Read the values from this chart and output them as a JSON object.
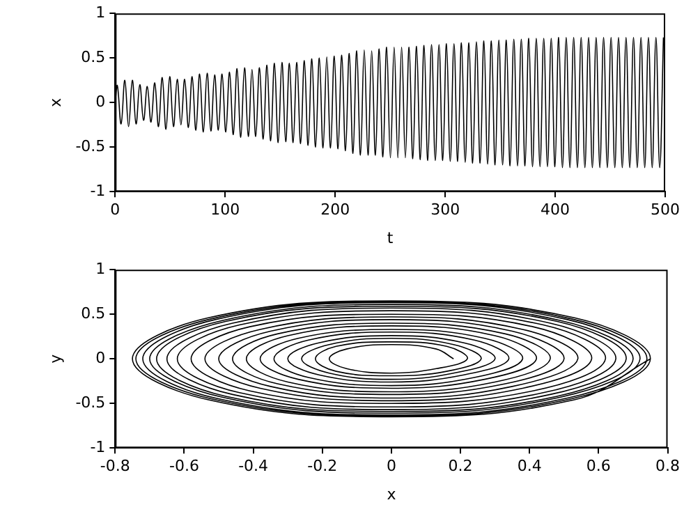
{
  "chart_data": [
    {
      "type": "line",
      "xlabel": "t",
      "ylabel": "x",
      "xlim": [
        0,
        500
      ],
      "xticks": [
        0,
        100,
        200,
        300,
        400,
        500
      ],
      "ylim": [
        -1,
        1
      ],
      "yticks": [
        -1,
        -0.5,
        0,
        0.5,
        1
      ],
      "grid": false,
      "legend": false,
      "series": [
        {
          "color": "#000000",
          "x": [
            0,
            2,
            5.4,
            8.8,
            12.2,
            15.6,
            19,
            22.4,
            25.8,
            29.2,
            32.6,
            36,
            39.4,
            42.8,
            46.2,
            49.6,
            53,
            56.4,
            59.8,
            63.2,
            66.6,
            70,
            73.4,
            76.8,
            80.2,
            83.6,
            87,
            90.4,
            93.8,
            97.2,
            100.6,
            104,
            107.4,
            110.8,
            114.2,
            117.6,
            121,
            124.4,
            127.8,
            131.2,
            134.6,
            138,
            141.4,
            144.8,
            148.2,
            151.6,
            155,
            158.4,
            161.8,
            165.2,
            168.6,
            172,
            175.4,
            178.8,
            182.2,
            185.6,
            189,
            192.4,
            195.8,
            199.2,
            202.6,
            206,
            209.4,
            212.8,
            216.2,
            219.6,
            223,
            226.4,
            229.8,
            233.2,
            236.6,
            240,
            243.4,
            246.8,
            250.2,
            253.6,
            257,
            260.4,
            263.8,
            267.2,
            270.6,
            274,
            277.4,
            280.8,
            284.2,
            287.6,
            291,
            294.4,
            297.8,
            301.2,
            304.6,
            308,
            311.4,
            314.8,
            318.2,
            321.6,
            325,
            328.4,
            331.8,
            335.2,
            338.6,
            342,
            345.4,
            348.8,
            352.2,
            355.6,
            359,
            362.4,
            365.8,
            369.2,
            372.6,
            376,
            379.4,
            382.8,
            386.2,
            389.6,
            393,
            396.4,
            399.8,
            403.2,
            406.6,
            410,
            413.4,
            416.8,
            420.2,
            423.6,
            427,
            430.4,
            433.8,
            437.2,
            440.6,
            444,
            447.4,
            450.8,
            454.2,
            457.6,
            461,
            464.4,
            467.8,
            471.2,
            474.6,
            478,
            481.4,
            484.8,
            488.2,
            491.6,
            495,
            498.4
          ],
          "values": [
            0,
            0.19,
            -0.24,
            0.25,
            -0.27,
            0.25,
            -0.24,
            0.2,
            -0.2,
            0.18,
            -0.22,
            0.22,
            -0.27,
            0.28,
            -0.3,
            0.29,
            -0.27,
            0.26,
            -0.25,
            0.26,
            -0.28,
            0.29,
            -0.31,
            0.32,
            -0.33,
            0.33,
            -0.32,
            0.31,
            -0.31,
            0.32,
            -0.33,
            0.34,
            -0.36,
            0.38,
            -0.39,
            0.39,
            -0.38,
            0.37,
            -0.38,
            0.39,
            -0.41,
            0.42,
            -0.43,
            0.44,
            -0.45,
            0.45,
            -0.44,
            0.44,
            -0.45,
            0.45,
            -0.46,
            0.47,
            -0.48,
            0.49,
            -0.5,
            0.5,
            -0.51,
            0.51,
            -0.51,
            0.52,
            -0.52,
            0.53,
            -0.54,
            0.55,
            -0.57,
            0.58,
            -0.59,
            0.59,
            -0.59,
            0.58,
            -0.59,
            0.6,
            -0.61,
            0.62,
            -0.62,
            0.62,
            -0.62,
            0.62,
            -0.62,
            0.62,
            -0.63,
            0.63,
            -0.64,
            0.64,
            -0.65,
            0.65,
            -0.65,
            0.65,
            -0.65,
            0.66,
            -0.66,
            0.66,
            -0.66,
            0.67,
            -0.67,
            0.67,
            -0.68,
            0.68,
            -0.68,
            0.69,
            -0.69,
            0.69,
            -0.7,
            0.7,
            -0.7,
            0.7,
            -0.71,
            0.71,
            -0.71,
            0.71,
            -0.71,
            0.72,
            -0.72,
            0.72,
            -0.72,
            0.72,
            -0.72,
            0.72,
            -0.72,
            0.73,
            -0.73,
            0.73,
            -0.73,
            0.73,
            -0.73,
            0.73,
            -0.73,
            0.73,
            -0.73,
            0.73,
            -0.73,
            0.73,
            -0.73,
            0.73,
            -0.73,
            0.73,
            -0.73,
            0.73,
            -0.73,
            0.73,
            -0.73,
            0.73,
            -0.73,
            0.73,
            -0.73,
            0.73,
            -0.73,
            0.73
          ]
        }
      ]
    },
    {
      "type": "line",
      "xlabel": "x",
      "ylabel": "y",
      "xlim": [
        -0.8,
        0.8
      ],
      "xticks": [
        -0.8,
        -0.6,
        -0.4,
        -0.2,
        0,
        0.2,
        0.4,
        0.6,
        0.8
      ],
      "ylim": [
        -1,
        1
      ],
      "yticks": [
        -1,
        -0.5,
        0,
        0.5,
        1
      ],
      "grid": false,
      "legend": false,
      "series": [
        {
          "color": "#000000",
          "x": [
            0.18,
            0.13,
            0,
            -0.13,
            -0.18,
            -0.13,
            0,
            0.13,
            0.22,
            0.16,
            0,
            -0.16,
            -0.22,
            -0.16,
            0,
            0.16,
            0.26,
            0.18,
            0,
            -0.18,
            -0.26,
            -0.18,
            0,
            0.18,
            0.3,
            0.21,
            0,
            -0.21,
            -0.3,
            -0.21,
            0,
            0.21,
            0.34,
            0.24,
            0,
            -0.24,
            -0.34,
            -0.24,
            0,
            0.24,
            0.38,
            0.27,
            0,
            -0.27,
            -0.38,
            -0.27,
            0,
            0.27,
            0.42,
            0.3,
            0,
            -0.3,
            -0.42,
            -0.3,
            0,
            0.3,
            0.46,
            0.33,
            0,
            -0.33,
            -0.46,
            -0.33,
            0,
            0.33,
            0.5,
            0.35,
            0,
            -0.35,
            -0.5,
            -0.35,
            0,
            0.35,
            0.54,
            0.38,
            0,
            -0.38,
            -0.54,
            -0.38,
            0,
            0.38,
            0.58,
            0.41,
            0,
            -0.41,
            -0.58,
            -0.41,
            0,
            0.41,
            0.62,
            0.44,
            0,
            -0.44,
            -0.62,
            -0.44,
            0,
            0.44,
            0.65,
            0.46,
            0,
            -0.46,
            -0.65,
            -0.46,
            0,
            0.46,
            0.68,
            0.48,
            0,
            -0.48,
            -0.68,
            -0.48,
            0,
            0.48,
            0.7,
            0.49,
            0,
            -0.49,
            -0.7,
            -0.49,
            0,
            0.49,
            0.72,
            0.51,
            0,
            -0.51,
            -0.72,
            -0.51,
            0,
            0.51,
            0.74,
            0.52,
            0,
            -0.52,
            -0.74,
            -0.52,
            0,
            0.52,
            0.75,
            0.53,
            0,
            -0.53,
            -0.75,
            -0.53,
            0,
            0.53,
            0.75
          ],
          "values": [
            0,
            0.11,
            0.16,
            0.11,
            0,
            -0.11,
            -0.16,
            -0.11,
            0,
            0.14,
            0.19,
            0.14,
            0,
            -0.14,
            -0.19,
            -0.14,
            0,
            0.16,
            0.23,
            0.16,
            0,
            -0.16,
            -0.23,
            -0.16,
            0,
            0.18,
            0.26,
            0.18,
            0,
            -0.18,
            -0.26,
            -0.18,
            0,
            0.21,
            0.3,
            0.21,
            0,
            -0.21,
            -0.3,
            -0.21,
            0,
            0.23,
            0.33,
            0.23,
            0,
            -0.23,
            -0.33,
            -0.23,
            0,
            0.26,
            0.37,
            0.26,
            0,
            -0.26,
            -0.37,
            -0.26,
            0,
            0.28,
            0.4,
            0.28,
            0,
            -0.28,
            -0.4,
            -0.28,
            0,
            0.31,
            0.44,
            0.31,
            0,
            -0.31,
            -0.44,
            -0.31,
            0,
            0.33,
            0.47,
            0.33,
            0,
            -0.33,
            -0.47,
            -0.33,
            0,
            0.36,
            0.5,
            0.36,
            0,
            -0.36,
            -0.5,
            -0.36,
            0,
            0.38,
            0.54,
            0.38,
            0,
            -0.38,
            -0.54,
            -0.38,
            0,
            0.4,
            0.57,
            0.4,
            0,
            -0.4,
            -0.57,
            -0.4,
            0,
            0.42,
            0.59,
            0.42,
            0,
            -0.42,
            -0.59,
            -0.42,
            0,
            0.43,
            0.61,
            0.43,
            0,
            -0.43,
            -0.61,
            -0.43,
            0,
            0.44,
            0.63,
            0.44,
            0,
            -0.44,
            -0.63,
            -0.44,
            0,
            0.45,
            0.64,
            0.45,
            0,
            -0.45,
            -0.64,
            -0.45,
            0,
            0.46,
            0.65,
            0.46,
            0,
            -0.46,
            -0.65,
            -0.46,
            0
          ]
        }
      ]
    }
  ]
}
